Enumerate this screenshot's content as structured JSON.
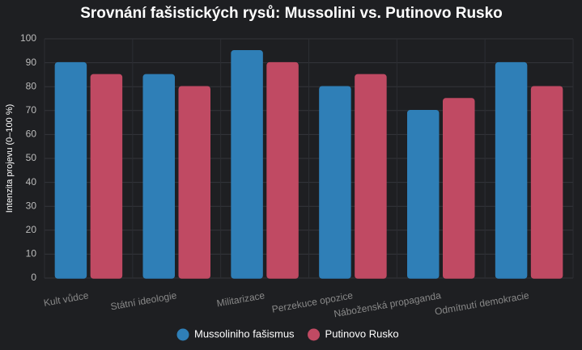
{
  "chart_data": {
    "type": "bar",
    "title": "Srovnání fašistických rysů: Mussolini vs. Putinovo Rusko",
    "y_label": "Intenzita projevu (0–100 %)",
    "categories": [
      "Kult vůdce",
      "Státní ideologie",
      "Militarizace",
      "Perzekuce opozice",
      "Náboženská propaganda",
      "Odmítnutí demokracie"
    ],
    "series": [
      {
        "name": "Mussoliniho fašismus",
        "color": "#2f7fb7",
        "values": [
          90,
          85,
          95,
          80,
          70,
          90
        ]
      },
      {
        "name": "Putinovo Rusko",
        "color": "#c04a63",
        "values": [
          85,
          80,
          90,
          85,
          75,
          80
        ]
      }
    ],
    "ylim": [
      0,
      100
    ],
    "yticks": [
      0,
      10,
      20,
      30,
      40,
      50,
      60,
      70,
      80,
      90,
      100
    ],
    "grid": true,
    "legend": "bottom"
  }
}
